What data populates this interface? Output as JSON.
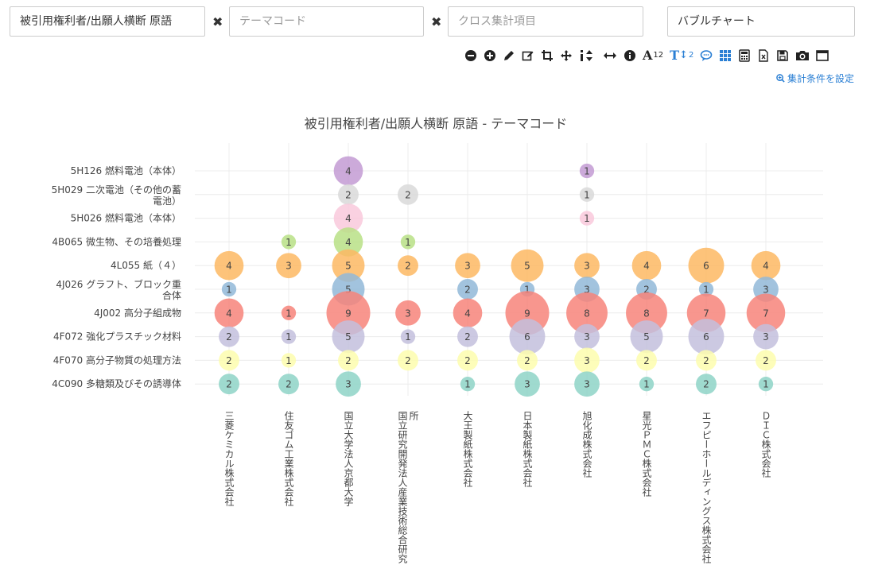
{
  "controls": {
    "field1_value": "被引用権利者/出願人横断 原語",
    "field2_placeholder": "テーマコード",
    "field3_placeholder": "クロス集計項目",
    "field4_value": "バブルチャート",
    "remove_symbol": "✖",
    "settings_link": "集計条件を設定"
  },
  "toolbar": {
    "font_size_label": "12",
    "font_size2_label": "2",
    "icons": [
      "zoom-out-icon",
      "zoom-in-icon",
      "pencil-icon",
      "edit-icon",
      "crop-icon",
      "move-icon",
      "info-sort-icon",
      "arrows-h-icon",
      "info-icon",
      "font-size-icon",
      "text-height-icon",
      "comment-icon",
      "grid-icon",
      "calculator-icon",
      "excel-icon",
      "save-icon",
      "camera-icon",
      "window-icon"
    ]
  },
  "chart_data": {
    "type": "bubble",
    "title": "被引用権利者/出願人横断 原語 - テーマコード",
    "x_categories": [
      "三菱ケミカル株式会社",
      "住友ゴム工業株式会社",
      "国立大学法人京都大学",
      "国立研究開発法人産業技術総合研究所",
      "大王製紙株式会社",
      "日本製紙株式会社",
      "旭化成株式会社",
      "星光ＰＭＣ株式会社",
      "エフピーホールディングス株式会社",
      "ＤＩＣ株式会社"
    ],
    "y_categories": [
      "5H126 燃料電池（本体）",
      "5H029 二次電池（その他の蓄電池）",
      "5H026 燃料電池（本体）",
      "4B065 微生物、その培養処理",
      "4L055 紙（４）",
      "4J026 グラフト、ブロック重合体",
      "4J002 高分子組成物",
      "4F072 強化プラスチック材料",
      "4F070 高分子物質の処理方法",
      "4C090 多糖類及びその誘導体"
    ],
    "y_label_lines": [
      [
        "5H126 燃料電池（本体）"
      ],
      [
        "5H029 二次電池（その他の蓄",
        "電池）"
      ],
      [
        "5H026 燃料電池（本体）"
      ],
      [
        "4B065 微生物、その培養処理"
      ],
      [
        "4L055 紙（４）"
      ],
      [
        "4J026 グラフト、ブロック重",
        "合体"
      ],
      [
        "4J002 高分子組成物"
      ],
      [
        "4F072 強化プラスチック材料"
      ],
      [
        "4F070 高分子物質の処理方法"
      ],
      [
        "4C090 多糖類及びその誘導体"
      ]
    ],
    "x_label_lines": [
      [
        "三菱ケミカル株式会社"
      ],
      [
        "住友ゴム工業株式会社"
      ],
      [
        "国立大学法人京都大学"
      ],
      [
        "国立研究開発法人産業技術総合研究",
        "所"
      ],
      [
        "大王製紙株式会社"
      ],
      [
        "日本製紙株式会社"
      ],
      [
        "旭化成株式会社"
      ],
      [
        "星光ＰＭＣ株式会社"
      ],
      [
        "エフピーホールディングス株式会社"
      ],
      [
        "ＤＩＣ株式会社"
      ]
    ],
    "row_colors": [
      "#c39bd3",
      "#d9d9d9",
      "#f9c9dc",
      "#b8e186",
      "#fdb863",
      "#92b8d8",
      "#f7847a",
      "#c3bfdd",
      "#fdfdae",
      "#8ed3c7"
    ],
    "series": [
      {
        "y": "5H126 燃料電池（本体）",
        "values": [
          0,
          0,
          4,
          0,
          0,
          0,
          1,
          0,
          0,
          0
        ]
      },
      {
        "y": "5H029 二次電池（その他の蓄電池）",
        "values": [
          0,
          0,
          2,
          2,
          0,
          0,
          1,
          0,
          0,
          0
        ]
      },
      {
        "y": "5H026 燃料電池（本体）",
        "values": [
          0,
          0,
          4,
          0,
          0,
          0,
          1,
          0,
          0,
          0
        ]
      },
      {
        "y": "4B065 微生物、その培養処理",
        "values": [
          0,
          1,
          4,
          1,
          0,
          0,
          0,
          0,
          0,
          0
        ]
      },
      {
        "y": "4L055 紙（４）",
        "values": [
          4,
          3,
          5,
          2,
          3,
          5,
          3,
          4,
          6,
          4
        ]
      },
      {
        "y": "4J026 グラフト、ブロック重合体",
        "values": [
          1,
          0,
          5,
          0,
          2,
          1,
          3,
          2,
          1,
          3
        ]
      },
      {
        "y": "4J002 高分子組成物",
        "values": [
          4,
          1,
          9,
          3,
          4,
          9,
          8,
          8,
          7,
          7
        ]
      },
      {
        "y": "4F072 強化プラスチック材料",
        "values": [
          2,
          1,
          5,
          1,
          2,
          6,
          3,
          5,
          6,
          3
        ]
      },
      {
        "y": "4F070 高分子物質の処理方法",
        "values": [
          2,
          1,
          2,
          2,
          2,
          2,
          3,
          2,
          2,
          2
        ]
      },
      {
        "y": "4C090 多糖類及びその誘導体",
        "values": [
          2,
          2,
          3,
          0,
          1,
          3,
          3,
          1,
          2,
          1
        ]
      }
    ],
    "grid": true
  }
}
